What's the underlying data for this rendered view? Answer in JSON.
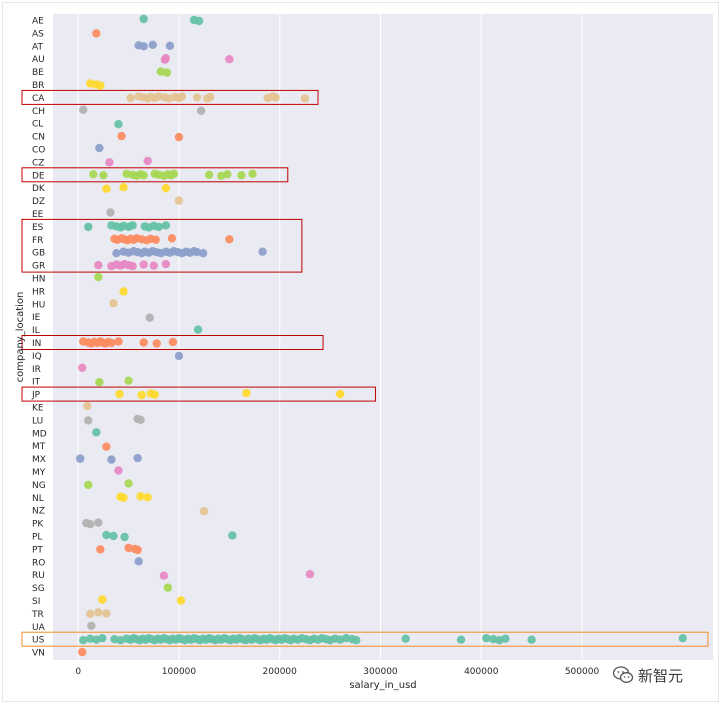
{
  "chart_data": {
    "type": "strip",
    "title": "",
    "xlabel": "salary_in_usd",
    "ylabel": "company_location",
    "xlim": [
      -25000,
      630000
    ],
    "xticks": [
      0,
      100000,
      200000,
      300000,
      400000,
      500000
    ],
    "xtick_labels": [
      "0",
      "100000",
      "200000",
      "300000",
      "400000",
      "500000"
    ],
    "grid": true,
    "categories": [
      "AE",
      "AS",
      "AT",
      "AU",
      "BE",
      "BR",
      "CA",
      "CH",
      "CL",
      "CN",
      "CO",
      "CZ",
      "DE",
      "DK",
      "DZ",
      "EE",
      "ES",
      "FR",
      "GB",
      "GR",
      "HN",
      "HR",
      "HU",
      "IE",
      "IL",
      "IN",
      "IQ",
      "IR",
      "IT",
      "JP",
      "KE",
      "LU",
      "MD",
      "MT",
      "MX",
      "MY",
      "NG",
      "NL",
      "NZ",
      "PK",
      "PL",
      "PT",
      "RO",
      "RU",
      "SG",
      "SI",
      "TR",
      "UA",
      "US",
      "VN"
    ],
    "palette": [
      "#66c2a5",
      "#fc8d62",
      "#8da0cb",
      "#e78ac3",
      "#a6d854",
      "#ffd92f",
      "#e5c494",
      "#b3b3b3"
    ],
    "highlight_color_red": "#c00000",
    "highlight_color_orange": "#f28c28",
    "highlights": [
      {
        "from": "CA",
        "to": "CA",
        "x_end": 238000,
        "color": "red"
      },
      {
        "from": "DE",
        "to": "DE",
        "x_end": 208000,
        "color": "red"
      },
      {
        "from": "ES",
        "to": "GR",
        "x_end": 222000,
        "color": "red"
      },
      {
        "from": "IN",
        "to": "IN",
        "x_end": 243000,
        "color": "red"
      },
      {
        "from": "JP",
        "to": "JP",
        "x_end": 295000,
        "color": "red"
      },
      {
        "from": "US",
        "to": "US",
        "x_end": 625000,
        "color": "orange"
      }
    ],
    "series": {
      "AE": [
        65000,
        115000,
        120000
      ],
      "AS": [
        18000
      ],
      "AT": [
        60000,
        65000,
        74000,
        91000
      ],
      "AU": [
        86000,
        87000,
        150000
      ],
      "BE": [
        82000,
        88000
      ],
      "BR": [
        12000,
        18000,
        22000
      ],
      "CA": [
        52000,
        60000,
        65000,
        69000,
        72000,
        76000,
        80000,
        86000,
        90000,
        96000,
        100000,
        103000,
        118000,
        128000,
        131000,
        188000,
        193000,
        196000,
        225000
      ],
      "CH": [
        5000,
        122000
      ],
      "CL": [
        40000
      ],
      "CN": [
        43000,
        100000
      ],
      "CO": [
        21000
      ],
      "CZ": [
        31000,
        69000
      ],
      "DE": [
        15000,
        25000,
        48000,
        54000,
        58000,
        62000,
        65000,
        76000,
        80000,
        85000,
        89000,
        92000,
        95000,
        130000,
        142000,
        148000,
        162000,
        173000
      ],
      "DK": [
        28000,
        45000,
        87000
      ],
      "DZ": [
        100000
      ],
      "EE": [
        32000
      ],
      "ES": [
        10000,
        33000,
        38000,
        42000,
        45000,
        50000,
        54000,
        66000,
        70000,
        75000,
        80000,
        87000
      ],
      "FR": [
        36000,
        39000,
        43000,
        46000,
        49000,
        52000,
        55000,
        58000,
        63000,
        68000,
        72000,
        77000,
        93000,
        150000
      ],
      "GB": [
        38000,
        45000,
        50000,
        55000,
        59000,
        63000,
        66000,
        70000,
        74000,
        78000,
        82000,
        87000,
        91000,
        95000,
        99000,
        103000,
        107000,
        111000,
        115000,
        118000,
        124000,
        183000
      ],
      "GR": [
        20000,
        33000,
        38000,
        42000,
        46000,
        50000,
        54000,
        65000,
        75000,
        87000
      ],
      "HN": [
        20000
      ],
      "HR": [
        45000
      ],
      "HU": [
        35000
      ],
      "IE": [
        71000
      ],
      "IL": [
        119000
      ],
      "IN": [
        5000,
        10000,
        13000,
        16000,
        19000,
        22000,
        24000,
        27000,
        30000,
        33000,
        40000,
        65000,
        78000,
        94000
      ],
      "IQ": [
        100000
      ],
      "IR": [
        4000
      ],
      "IT": [
        21000,
        50000
      ],
      "JP": [
        41000,
        63000,
        72000,
        76000,
        167000,
        260000
      ],
      "KE": [
        9000
      ],
      "LU": [
        10000,
        59000,
        62000
      ],
      "MD": [
        18000
      ],
      "MT": [
        28000
      ],
      "MX": [
        2000,
        33000,
        59000
      ],
      "MY": [
        40000
      ],
      "NG": [
        10000,
        50000
      ],
      "NL": [
        42000,
        45000,
        62000,
        69000
      ],
      "NZ": [
        125000
      ],
      "PK": [
        8000,
        12000,
        20000
      ],
      "PL": [
        28000,
        35000,
        46000,
        153000
      ],
      "PT": [
        22000,
        50000,
        56000,
        59000
      ],
      "RO": [
        60000
      ],
      "RU": [
        85000,
        230000
      ],
      "SG": [
        89000
      ],
      "SI": [
        24000,
        102000
      ],
      "TR": [
        12000,
        20000,
        28000
      ],
      "UA": [
        13000
      ],
      "US": [
        5000,
        12000,
        18000,
        24000,
        36000,
        42000,
        48000,
        52000,
        55000,
        58000,
        61000,
        64000,
        67000,
        70000,
        73000,
        76000,
        79000,
        82000,
        85000,
        88000,
        91000,
        94000,
        97000,
        100000,
        103000,
        106000,
        109000,
        112000,
        115000,
        118000,
        121000,
        124000,
        127000,
        130000,
        133000,
        136000,
        139000,
        142000,
        145000,
        148000,
        151000,
        154000,
        157000,
        160000,
        163000,
        166000,
        169000,
        172000,
        175000,
        178000,
        181000,
        184000,
        187000,
        190000,
        193000,
        196000,
        199000,
        202000,
        205000,
        208000,
        211000,
        214000,
        218000,
        222000,
        226000,
        230000,
        234000,
        238000,
        242000,
        246000,
        250000,
        255000,
        260000,
        266000,
        272000,
        276000,
        325000,
        380000,
        405000,
        412000,
        418000,
        424000,
        450000,
        600000
      ],
      "VN": [
        4000
      ]
    }
  },
  "watermark": {
    "icon": "wechat-icon",
    "text": "新智元"
  }
}
